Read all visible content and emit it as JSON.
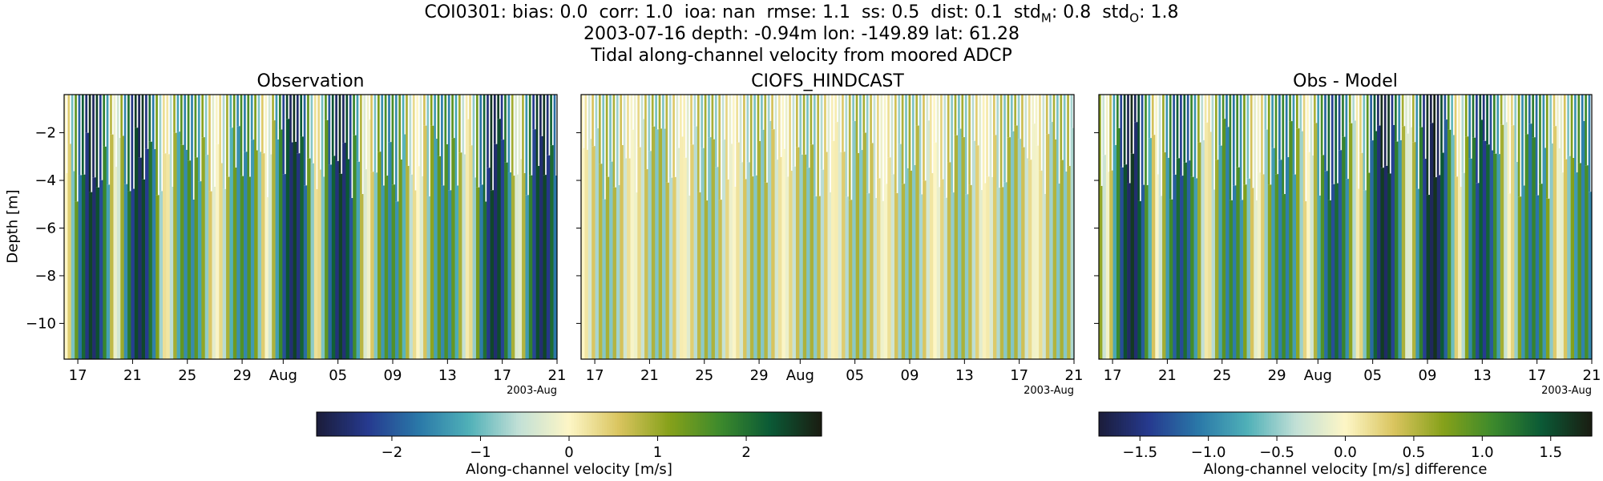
{
  "title": {
    "line1": "COI0301: bias: 0.0  corr: 1.0  ioa: nan  rmse: 1.1  ss: 0.5  dist: 0.1  std",
    "line1_sub_m": "M",
    "line1_mid": ": 0.8  std",
    "line1_sub_o": "O",
    "line1_end": ": 1.8",
    "line2": "2003-07-16 depth: -0.94m lon: -149.89 lat: 61.28",
    "line3": "Tidal along-channel velocity from moored ADCP"
  },
  "y_axis_label": "Depth [m]",
  "colorbars": {
    "velocity": {
      "label": "Along-channel velocity [m/s]",
      "ticks": [
        "−2",
        "−1",
        "0",
        "1",
        "2"
      ],
      "tick_values": [
        -2,
        -1,
        0,
        1,
        2
      ],
      "range": [
        -2.85,
        2.85
      ]
    },
    "difference": {
      "label": "Along-channel velocity [m/s] difference",
      "ticks": [
        "−1.5",
        "−1.0",
        "−0.5",
        "0.0",
        "0.5",
        "1.0",
        "1.5"
      ],
      "tick_values": [
        -1.5,
        -1.0,
        -0.5,
        0.0,
        0.5,
        1.0,
        1.5
      ],
      "range": [
        -1.8,
        1.8
      ]
    }
  },
  "colormap": [
    "#1b1d3c",
    "#263a8f",
    "#2a78a8",
    "#4fb0b8",
    "#c2e0d6",
    "#fdf6c6",
    "#d9c45e",
    "#86a11a",
    "#3d8a2c",
    "#0b5a36",
    "#1a1e12"
  ],
  "chart_data": [
    {
      "type": "heatmap",
      "title": "Observation",
      "ylabel": "Depth [m]",
      "x_range": [
        "2003-07-16",
        "2003-08-21"
      ],
      "xticks": [
        "17",
        "21",
        "25",
        "29",
        "Aug",
        "05",
        "09",
        "13",
        "17",
        "21"
      ],
      "xtick_dates": [
        "2003-07-17",
        "2003-07-21",
        "2003-07-25",
        "2003-07-29",
        "2003-08-01",
        "2003-08-05",
        "2003-08-09",
        "2003-08-13",
        "2003-08-17",
        "2003-08-21"
      ],
      "x_offset_label": "2003-Aug",
      "ylim": [
        -11.5,
        -0.4
      ],
      "yticks": [
        -2,
        -4,
        -6,
        -8,
        -10
      ],
      "ytick_labels": [
        "−2",
        "−4",
        "−6",
        "−8",
        "−10"
      ],
      "amplitude_mps": 2.7,
      "colorbar": "velocity"
    },
    {
      "type": "heatmap",
      "title": "CIOFS_HINDCAST",
      "x_range": [
        "2003-07-16",
        "2003-08-21"
      ],
      "xticks": [
        "17",
        "21",
        "25",
        "29",
        "Aug",
        "05",
        "09",
        "13",
        "17",
        "21"
      ],
      "xtick_dates": [
        "2003-07-17",
        "2003-07-21",
        "2003-07-25",
        "2003-07-29",
        "2003-08-01",
        "2003-08-05",
        "2003-08-09",
        "2003-08-13",
        "2003-08-17",
        "2003-08-21"
      ],
      "x_offset_label": "2003-Aug",
      "ylim": [
        -11.5,
        -0.4
      ],
      "yticks": [
        -2,
        -4,
        -6,
        -8,
        -10
      ],
      "amplitude_mps": 1.0,
      "colorbar": "velocity"
    },
    {
      "type": "heatmap",
      "title": "Obs - Model",
      "x_range": [
        "2003-07-16",
        "2003-08-21"
      ],
      "xticks": [
        "17",
        "21",
        "25",
        "29",
        "Aug",
        "05",
        "09",
        "13",
        "17",
        "21"
      ],
      "xtick_dates": [
        "2003-07-17",
        "2003-07-21",
        "2003-07-25",
        "2003-07-29",
        "2003-08-01",
        "2003-08-05",
        "2003-08-09",
        "2003-08-13",
        "2003-08-17",
        "2003-08-21"
      ],
      "x_offset_label": "2003-Aug",
      "ylim": [
        -11.5,
        -0.4
      ],
      "yticks": [
        -2,
        -4,
        -6,
        -8,
        -10
      ],
      "amplitude_mps": 1.7,
      "colorbar": "difference"
    }
  ]
}
